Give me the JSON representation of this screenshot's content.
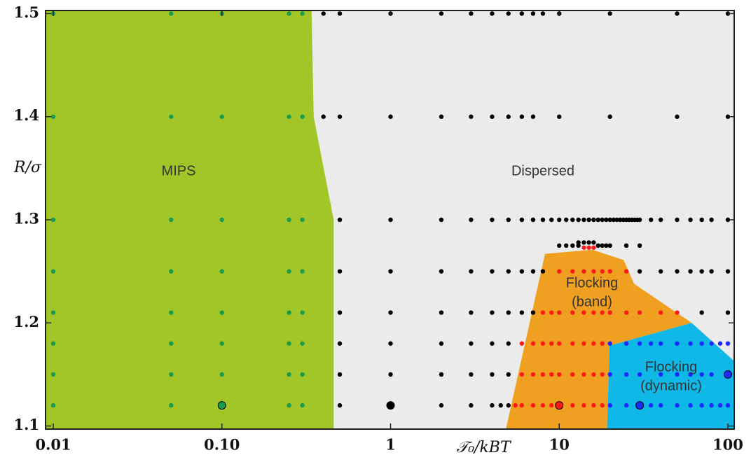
{
  "chart_data": {
    "type": "scatter",
    "x_label": "𝒯₀/kBT",
    "y_label": "R/σ",
    "xscale": "log",
    "xlim": [
      0.009,
      109
    ],
    "ylim": [
      1.097,
      1.503
    ],
    "xticks": [
      0.01,
      {
        "value": 0.1,
        "label": "0.10"
      },
      1,
      10,
      100
    ],
    "yticks": [
      1.1,
      1.2,
      1.3,
      1.4,
      1.5
    ],
    "regions": [
      {
        "label": [
          "Dispersed"
        ],
        "color": "#ebebeb",
        "boundary": [
          [
            0.009,
            1.097
          ],
          [
            109,
            1.097
          ],
          [
            109,
            1.503
          ],
          [
            0.009,
            1.503
          ]
        ]
      },
      {
        "label": [
          "MIPS"
        ],
        "color": "#a2c528",
        "boundary": [
          [
            0.009,
            1.503
          ],
          [
            0.34,
            1.503
          ],
          [
            0.35,
            1.4
          ],
          [
            0.46,
            1.3
          ],
          [
            0.46,
            1.097
          ],
          [
            0.009,
            1.097
          ]
        ]
      },
      {
        "label": [
          "Flocking",
          "(band)"
        ],
        "color": "#f0a020",
        "boundary": [
          [
            4.83,
            1.097
          ],
          [
            8.24,
            1.267
          ],
          [
            15.7,
            1.271
          ],
          [
            24.1,
            1.261
          ],
          [
            27.8,
            1.238
          ],
          [
            61,
            1.2
          ],
          [
            19.9,
            1.178
          ],
          [
            19.2,
            1.097
          ]
        ]
      },
      {
        "label": [
          "Flocking",
          "(dynamic)"
        ],
        "color": "#10b8e8",
        "boundary": [
          [
            19.2,
            1.097
          ],
          [
            19.9,
            1.178
          ],
          [
            61,
            1.2
          ],
          [
            109,
            1.163
          ],
          [
            109,
            1.097
          ]
        ]
      }
    ],
    "series": [
      {
        "color": "#1a9c4a",
        "y": 1.5,
        "x": [
          0.01,
          0.05,
          0.1,
          0.25,
          0.3
        ]
      },
      {
        "color": "#1a9c4a",
        "y": 1.4,
        "x": [
          0.01,
          0.05,
          0.1,
          0.25,
          0.3
        ]
      },
      {
        "color": "#1a9c4a",
        "y": 1.3,
        "x": [
          0.01,
          0.05,
          0.1,
          0.25,
          0.3
        ]
      },
      {
        "color": "#1a9c4a",
        "y": 1.25,
        "x": [
          0.01,
          0.05,
          0.1,
          0.25,
          0.3
        ]
      },
      {
        "color": "#1a9c4a",
        "y": 1.21,
        "x": [
          0.01,
          0.05,
          0.1,
          0.25,
          0.3
        ]
      },
      {
        "color": "#1a9c4a",
        "y": 1.18,
        "x": [
          0.01,
          0.05,
          0.1,
          0.25,
          0.3
        ]
      },
      {
        "color": "#1a9c4a",
        "y": 1.15,
        "x": [
          0.01,
          0.05,
          0.1,
          0.25,
          0.3
        ]
      },
      {
        "color": "#1a9c4a",
        "y": 1.12,
        "x": [
          0.01,
          0.05,
          0.25,
          0.3
        ]
      },
      {
        "color": "#000000",
        "y": 1.5,
        "x": [
          0.4,
          0.5,
          1,
          2,
          3,
          4,
          5,
          6,
          7,
          8,
          10,
          20,
          50,
          100
        ]
      },
      {
        "color": "#000000",
        "y": 1.4,
        "x": [
          0.4,
          0.5,
          1,
          2,
          3,
          4,
          5,
          6,
          7,
          10,
          20,
          50,
          100
        ]
      },
      {
        "color": "#000000",
        "y": 1.3,
        "x": [
          0.5,
          1,
          2,
          3,
          4,
          5,
          6,
          7,
          8,
          9,
          10,
          11,
          12,
          13,
          14,
          15,
          16,
          17,
          18,
          19,
          20,
          21,
          22,
          23,
          24,
          25,
          26,
          27,
          28,
          29,
          30,
          35,
          40,
          50,
          60,
          70,
          80,
          100
        ]
      },
      {
        "color": "#000000",
        "y": 1.278,
        "x": [
          13,
          14,
          15,
          16
        ]
      },
      {
        "color": "#000000",
        "y": 1.275,
        "x": [
          10,
          11,
          12,
          13,
          17,
          18,
          19,
          20,
          25,
          30
        ]
      },
      {
        "color": "#ff1a1a",
        "y": 1.273,
        "x": [
          14,
          15,
          16
        ]
      },
      {
        "color": "#000000",
        "y": 1.25,
        "x": [
          0.5,
          1,
          2,
          3,
          4,
          5,
          6,
          7,
          8,
          30,
          40,
          50,
          60,
          70,
          80,
          100
        ]
      },
      {
        "color": "#ff1a1a",
        "y": 1.25,
        "x": [
          10,
          12,
          14,
          16,
          18,
          20,
          25
        ]
      },
      {
        "color": "#000000",
        "y": 1.21,
        "x": [
          0.5,
          1,
          2,
          3,
          4,
          5,
          6,
          7,
          70,
          100
        ]
      },
      {
        "color": "#ff1a1a",
        "y": 1.21,
        "x": [
          8,
          9,
          10,
          12,
          14,
          16,
          18,
          20,
          25,
          30,
          40,
          50
        ]
      },
      {
        "color": "#000000",
        "y": 1.18,
        "x": [
          0.5,
          1,
          2,
          3,
          4,
          5
        ]
      },
      {
        "color": "#ff1a1a",
        "y": 1.18,
        "x": [
          6,
          7,
          8,
          9,
          10,
          12,
          14,
          16,
          18
        ]
      },
      {
        "color": "#1a2aff",
        "y": 1.18,
        "x": [
          20,
          25,
          30,
          35,
          40,
          50,
          60,
          70,
          80,
          90,
          100
        ]
      },
      {
        "color": "#000000",
        "y": 1.15,
        "x": [
          0.5,
          1,
          2,
          3,
          4,
          5
        ]
      },
      {
        "color": "#ff1a1a",
        "y": 1.15,
        "x": [
          6,
          7,
          8,
          9,
          10,
          12,
          14,
          16,
          18
        ]
      },
      {
        "color": "#1a2aff",
        "y": 1.15,
        "x": [
          20,
          25,
          30,
          40,
          50,
          60,
          70,
          80
        ]
      },
      {
        "color": "#000000",
        "y": 1.12,
        "x": [
          0.5,
          2,
          3,
          4,
          4.5,
          5
        ]
      },
      {
        "color": "#ff1a1a",
        "y": 1.12,
        "x": [
          5.5,
          6,
          7,
          8,
          9,
          12,
          14,
          16,
          18
        ]
      },
      {
        "color": "#1a2aff",
        "y": 1.12,
        "x": [
          20,
          25,
          35,
          40,
          50,
          60,
          70,
          80,
          90,
          100
        ]
      },
      {
        "color": "#1a9c4a",
        "y": 1.12,
        "x": [
          0.1
        ],
        "outline": "#000000"
      },
      {
        "color": "#000000",
        "y": 1.12,
        "x": [
          1
        ],
        "outline": "#000000"
      },
      {
        "color": "#ff1a1a",
        "y": 1.12,
        "x": [
          10
        ],
        "outline": "#000000"
      },
      {
        "color": "#1a2aff",
        "y": 1.12,
        "x": [
          30
        ],
        "outline": "#000000"
      },
      {
        "color": "#1a2aff",
        "y": 1.15,
        "x": [
          100
        ],
        "outline": "#000000"
      }
    ]
  }
}
